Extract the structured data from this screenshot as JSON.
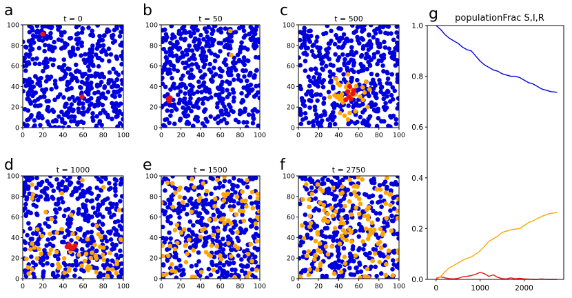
{
  "figure": {
    "panel_letters": [
      "a",
      "b",
      "c",
      "d",
      "e",
      "f",
      "g"
    ]
  },
  "colors": {
    "susceptible": "#0000dd",
    "infected": "#ee1111",
    "recovered": "#ffa500",
    "axis": "#000000",
    "background": "#ffffff"
  },
  "chart_data": [
    {
      "type": "scatter",
      "panel": "a",
      "title": "t = 0",
      "xlim": [
        0,
        100
      ],
      "ylim": [
        0,
        100
      ],
      "xticks": [
        0,
        20,
        40,
        60,
        80,
        100
      ],
      "yticks": [
        0,
        20,
        40,
        60,
        80,
        100
      ],
      "series": [
        {
          "points": "scattered"
        },
        {
          "points": [
            [
              20,
              91
            ],
            [
              59,
              30
            ]
          ]
        },
        {
          "points": []
        }
      ],
      "counts_approx": {
        "susceptible": 500,
        "infected": 2,
        "recovered": 0
      }
    },
    {
      "type": "scatter",
      "panel": "b",
      "title": "t = 50",
      "xlim": [
        0,
        100
      ],
      "ylim": [
        0,
        100
      ],
      "xticks": [
        0,
        20,
        40,
        60,
        80,
        100
      ],
      "yticks": [
        0,
        20,
        40,
        60,
        80,
        100
      ],
      "series": [
        {
          "points": "scattered"
        },
        {
          "points": [
            [
              7,
              28
            ],
            [
              9,
              29
            ],
            [
              8,
              26
            ]
          ]
        },
        {
          "points": [
            [
              70,
              94
            ]
          ]
        }
      ],
      "counts_approx": {
        "susceptible": 495,
        "infected": 3,
        "recovered": 1
      }
    },
    {
      "type": "scatter",
      "panel": "c",
      "title": "t = 500",
      "xlim": [
        0,
        100
      ],
      "ylim": [
        0,
        100
      ],
      "xticks": [
        0,
        20,
        40,
        60,
        80,
        100
      ],
      "yticks": [
        0,
        20,
        40,
        60,
        80,
        100
      ],
      "series": [
        {
          "points": "scattered"
        },
        {
          "points": [
            [
              50,
              30
            ],
            [
              52,
              28
            ],
            [
              54,
              33
            ],
            [
              49,
              35
            ],
            [
              47,
              27
            ],
            [
              55,
              36
            ],
            [
              51,
              40
            ]
          ]
        },
        {
          "points": "clustered around (52, 32)"
        }
      ],
      "counts_approx": {
        "susceptible": 460,
        "infected": 7,
        "recovered": 35
      }
    },
    {
      "type": "scatter",
      "panel": "d",
      "title": "t = 1000",
      "xlim": [
        0,
        100
      ],
      "ylim": [
        0,
        100
      ],
      "xticks": [
        0,
        20,
        40,
        60,
        80,
        100
      ],
      "yticks": [
        0,
        20,
        40,
        60,
        80,
        100
      ],
      "series": [
        {
          "points": "scattered"
        },
        {
          "points": [
            [
              44,
              31
            ],
            [
              47,
              31
            ],
            [
              50,
              30
            ],
            [
              46,
              33
            ],
            [
              52,
              32
            ],
            [
              48,
              29
            ]
          ]
        },
        {
          "points": "scattered, concentrated in lower half"
        }
      ],
      "counts_approx": {
        "susceptible": 430,
        "infected": 6,
        "recovered": 70
      }
    },
    {
      "type": "scatter",
      "panel": "e",
      "title": "t = 1500",
      "xlim": [
        0,
        100
      ],
      "ylim": [
        0,
        100
      ],
      "xticks": [
        0,
        20,
        40,
        60,
        80,
        100
      ],
      "yticks": [
        0,
        20,
        40,
        60,
        80,
        100
      ],
      "series": [
        {
          "points": "scattered"
        },
        {
          "points": []
        },
        {
          "points": "scattered"
        }
      ],
      "counts_approx": {
        "susceptible": 400,
        "infected": 0,
        "recovered": 100
      }
    },
    {
      "type": "scatter",
      "panel": "f",
      "title": "t = 2750",
      "xlim": [
        0,
        100
      ],
      "ylim": [
        0,
        100
      ],
      "xticks": [
        0,
        20,
        40,
        60,
        80,
        100
      ],
      "yticks": [
        0,
        20,
        40,
        60,
        80,
        100
      ],
      "series": [
        {
          "points": "scattered"
        },
        {
          "points": []
        },
        {
          "points": "scattered"
        }
      ],
      "counts_approx": {
        "susceptible": 370,
        "infected": 0,
        "recovered": 130
      }
    },
    {
      "type": "line",
      "panel": "g",
      "title": "populationFrac S,I,R",
      "xlim": [
        -200,
        2900
      ],
      "ylim": [
        0,
        1.0
      ],
      "xticks": [
        0,
        1000,
        2000
      ],
      "yticks": [
        0.0,
        0.2,
        0.4,
        0.6,
        0.8,
        1.0
      ],
      "x": [
        0,
        100,
        200,
        300,
        400,
        500,
        600,
        700,
        800,
        900,
        1000,
        1100,
        1200,
        1300,
        1400,
        1500,
        1600,
        1700,
        1800,
        1900,
        2000,
        2100,
        2200,
        2300,
        2400,
        2500,
        2600,
        2750
      ],
      "series": [
        {
          "values": [
            1.0,
            0.985,
            0.965,
            0.95,
            0.94,
            0.93,
            0.915,
            0.905,
            0.9,
            0.88,
            0.86,
            0.845,
            0.835,
            0.825,
            0.82,
            0.81,
            0.805,
            0.8,
            0.8,
            0.795,
            0.785,
            0.775,
            0.77,
            0.76,
            0.75,
            0.745,
            0.74,
            0.737
          ]
        },
        {
          "values": [
            0.004,
            0.01,
            0.006,
            0.003,
            0.002,
            0.004,
            0.01,
            0.012,
            0.015,
            0.02,
            0.028,
            0.022,
            0.012,
            0.018,
            0.008,
            0.003,
            0.002,
            0.006,
            0.002,
            0.004,
            0.002,
            0.001,
            0.0,
            0.0,
            0.002,
            0.0,
            0.0,
            0.0
          ]
        },
        {
          "values": [
            0.0,
            0.01,
            0.03,
            0.045,
            0.055,
            0.065,
            0.075,
            0.083,
            0.088,
            0.1,
            0.112,
            0.13,
            0.15,
            0.16,
            0.17,
            0.185,
            0.19,
            0.195,
            0.198,
            0.2,
            0.212,
            0.224,
            0.23,
            0.24,
            0.248,
            0.255,
            0.26,
            0.263
          ]
        }
      ]
    }
  ]
}
